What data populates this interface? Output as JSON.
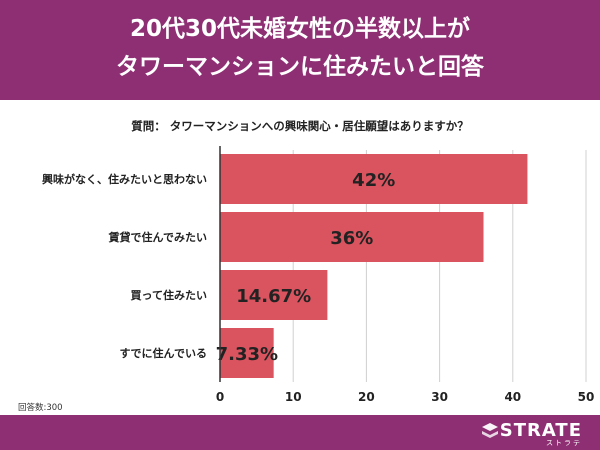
{
  "header": {
    "title_line1": "20代30代未婚女性の半数以上が",
    "title_line2": "タワーマンションに住みたいと回答"
  },
  "question": "質問： タワーマンションへの興味関心・居住願望はありますか？",
  "respondents": "回答数:300",
  "brand": {
    "name": "STRATE",
    "sub": "ストラテ"
  },
  "colors": {
    "header": "#8e2f73",
    "bar": "#d9545f",
    "grid": "#d0d0d0"
  },
  "chart_data": {
    "type": "bar",
    "orientation": "horizontal",
    "categories": [
      "興味がなく、住みたいと思わない",
      "賃貸で住んでみたい",
      "買って住みたい",
      "すでに住んでいる"
    ],
    "values": [
      42,
      36,
      14.67,
      7.33
    ],
    "data_labels": [
      "42%",
      "36%",
      "14.67%",
      "7.33%"
    ],
    "xlim": [
      0,
      50
    ],
    "xticks": [
      0,
      10,
      20,
      30,
      40,
      50
    ],
    "xtick_labels": [
      "0",
      "10",
      "20",
      "30",
      "40",
      "50"
    ],
    "grid": true
  }
}
